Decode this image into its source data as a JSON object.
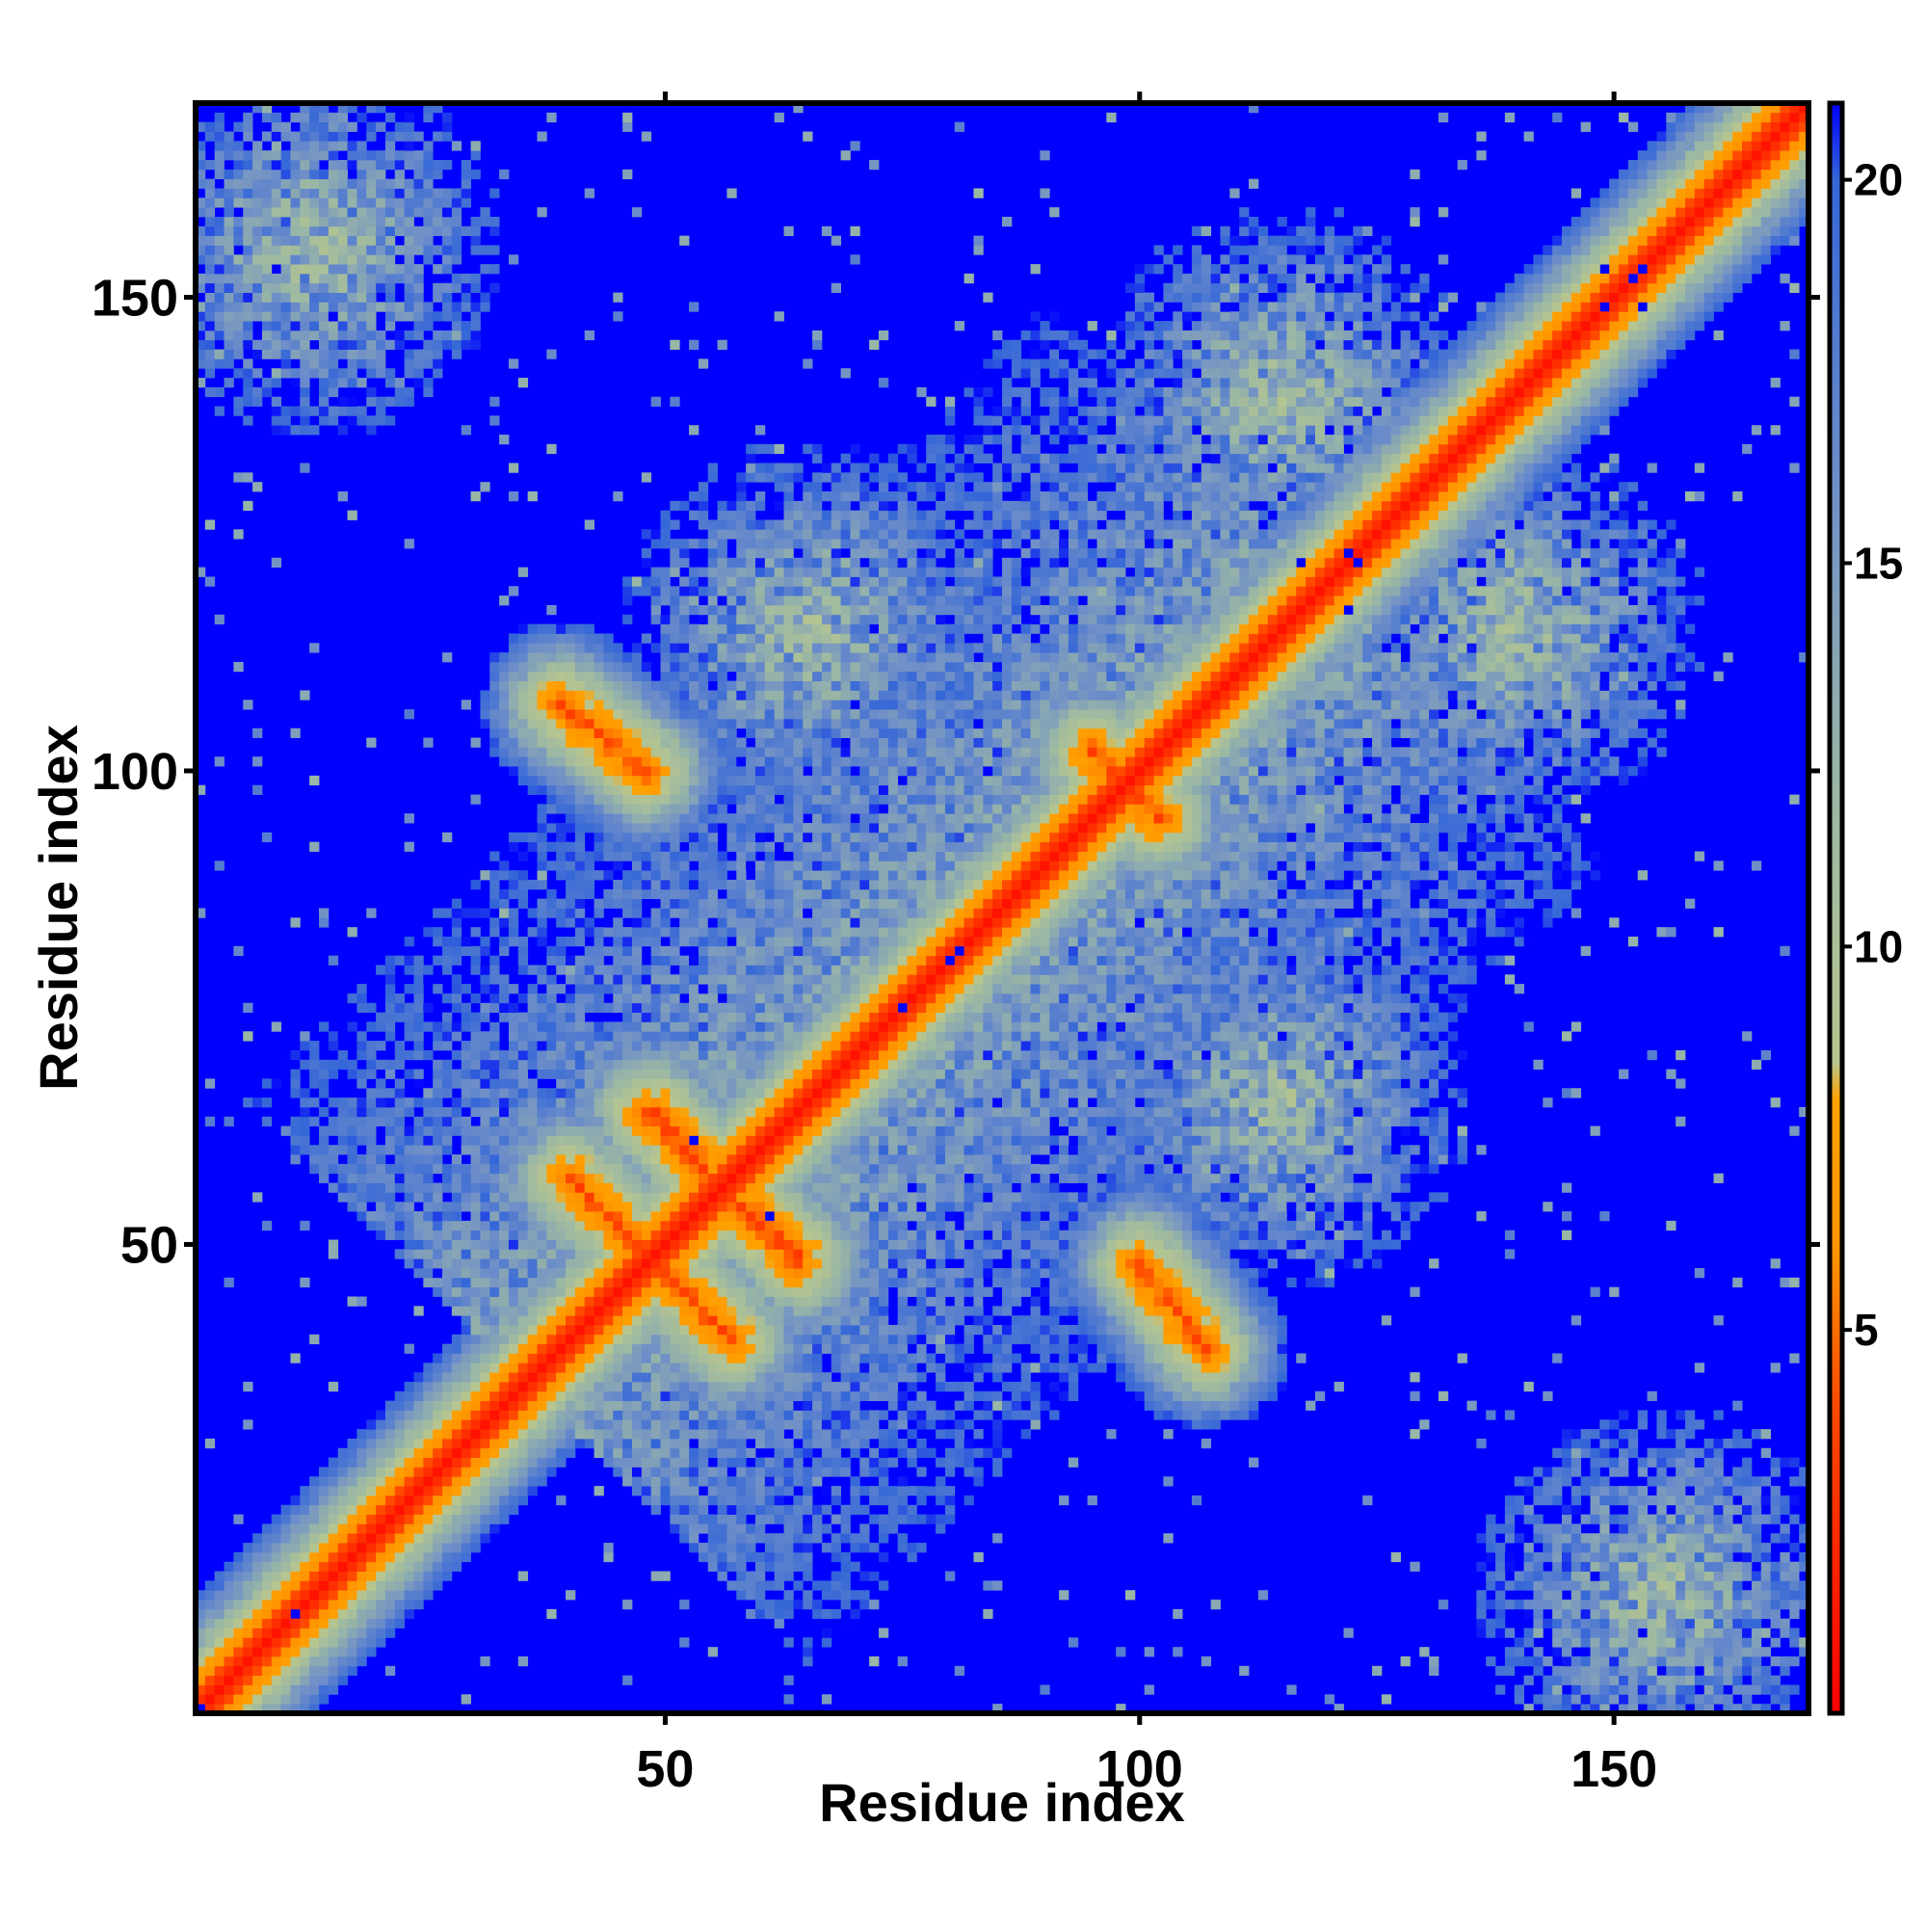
{
  "chart_data": {
    "type": "heatmap",
    "title": "",
    "xlabel": "Residue index",
    "ylabel": "Residue index",
    "xlim": [
      1,
      170
    ],
    "ylim": [
      1,
      170
    ],
    "x_ticks": [
      50,
      100,
      150
    ],
    "y_ticks": [
      50,
      100,
      150
    ],
    "n_residues": 170,
    "value_unit": "",
    "colorbar": {
      "ticks": [
        5,
        10,
        15,
        20
      ],
      "range": [
        0,
        21
      ],
      "stops": [
        {
          "value": 0,
          "color": "#ff0000"
        },
        {
          "value": 4,
          "color": "#ff4a00"
        },
        {
          "value": 6,
          "color": "#ff9400"
        },
        {
          "value": 8,
          "color": "#ffa200"
        },
        {
          "value": 8.5,
          "color": "#b7c58f"
        },
        {
          "value": 12,
          "color": "#9bb8a4"
        },
        {
          "value": 16,
          "color": "#6f8fc8"
        },
        {
          "value": 20,
          "color": "#3466d8"
        },
        {
          "value": 21,
          "color": "#0000ff"
        }
      ]
    },
    "background_value_color": "#0000ff",
    "structure_elements": [
      {
        "name": "main diagonal",
        "from": [
          1,
          1
        ],
        "to": [
          170,
          170
        ]
      },
      {
        "name": "antiparallel contact",
        "from": [
          40,
          57
        ],
        "to": [
          53,
          44
        ]
      },
      {
        "name": "antiparallel contact",
        "from": [
          48,
          64
        ],
        "to": [
          60,
          52
        ]
      },
      {
        "name": "antiparallel contact",
        "from": [
          57,
          55
        ],
        "to": [
          64,
          49
        ]
      },
      {
        "name": "antiparallel contact",
        "from": [
          39,
          107
        ],
        "to": [
          48,
          100
        ]
      },
      {
        "name": "antiparallel contact",
        "from": [
          95,
          102
        ],
        "to": [
          102,
          95
        ]
      },
      {
        "name": "contact cluster",
        "center": [
          13,
          155
        ]
      },
      {
        "name": "contact cluster",
        "center": [
          155,
          13
        ]
      },
      {
        "name": "contact cluster",
        "center": [
          115,
          140
        ]
      },
      {
        "name": "contact cluster",
        "center": [
          140,
          115
        ]
      },
      {
        "name": "contact cluster",
        "center": [
          65,
          115
        ]
      },
      {
        "name": "contact cluster",
        "center": [
          115,
          65
        ]
      }
    ]
  }
}
